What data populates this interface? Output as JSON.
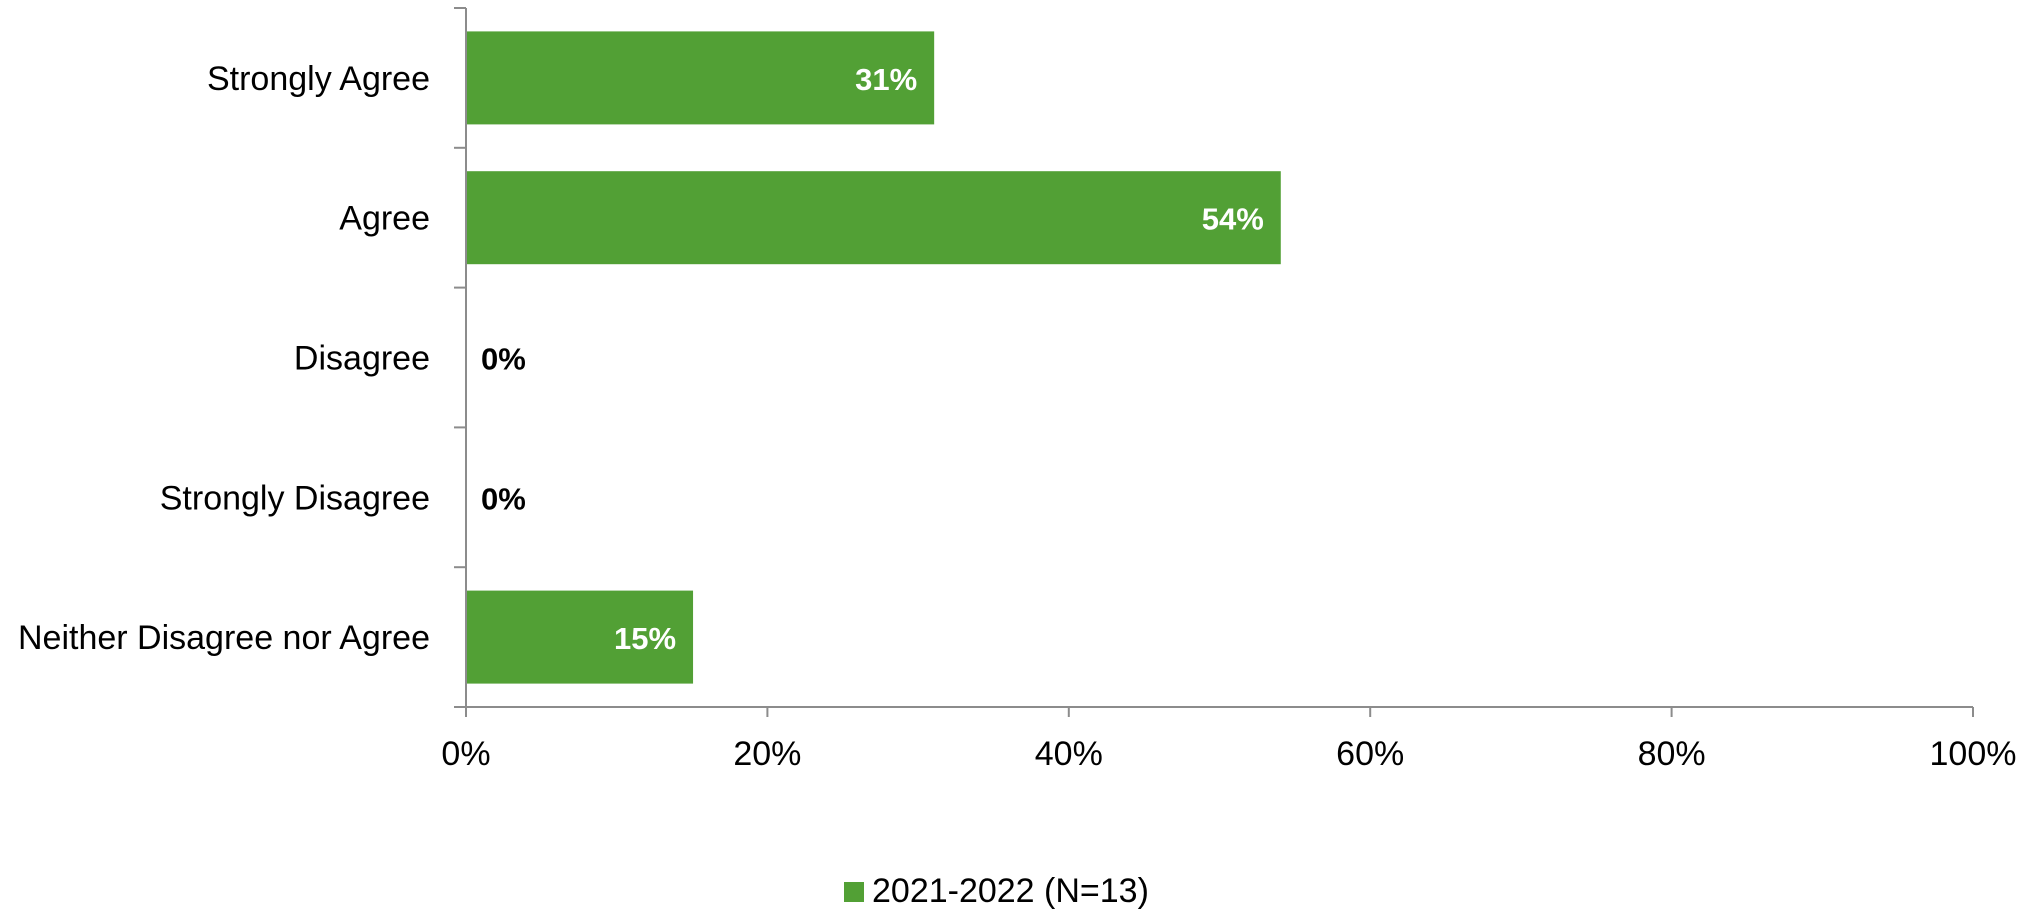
{
  "chart_data": {
    "type": "bar",
    "orientation": "horizontal",
    "categories": [
      "Strongly Agree",
      "Agree",
      "Disagree",
      "Strongly Disagree",
      "Neither Disagree nor Agree"
    ],
    "series": [
      {
        "name": "2021-2022 (N=13)",
        "values": [
          31,
          54,
          0,
          0,
          15
        ],
        "data_labels": [
          "31%",
          "54%",
          "0%",
          "0%",
          "15%"
        ],
        "color": "#52a035"
      }
    ],
    "x_ticks": [
      "0%",
      "20%",
      "40%",
      "60%",
      "80%",
      "100%"
    ],
    "xlim": [
      0,
      100
    ],
    "grid": false,
    "legend_position": "bottom"
  }
}
